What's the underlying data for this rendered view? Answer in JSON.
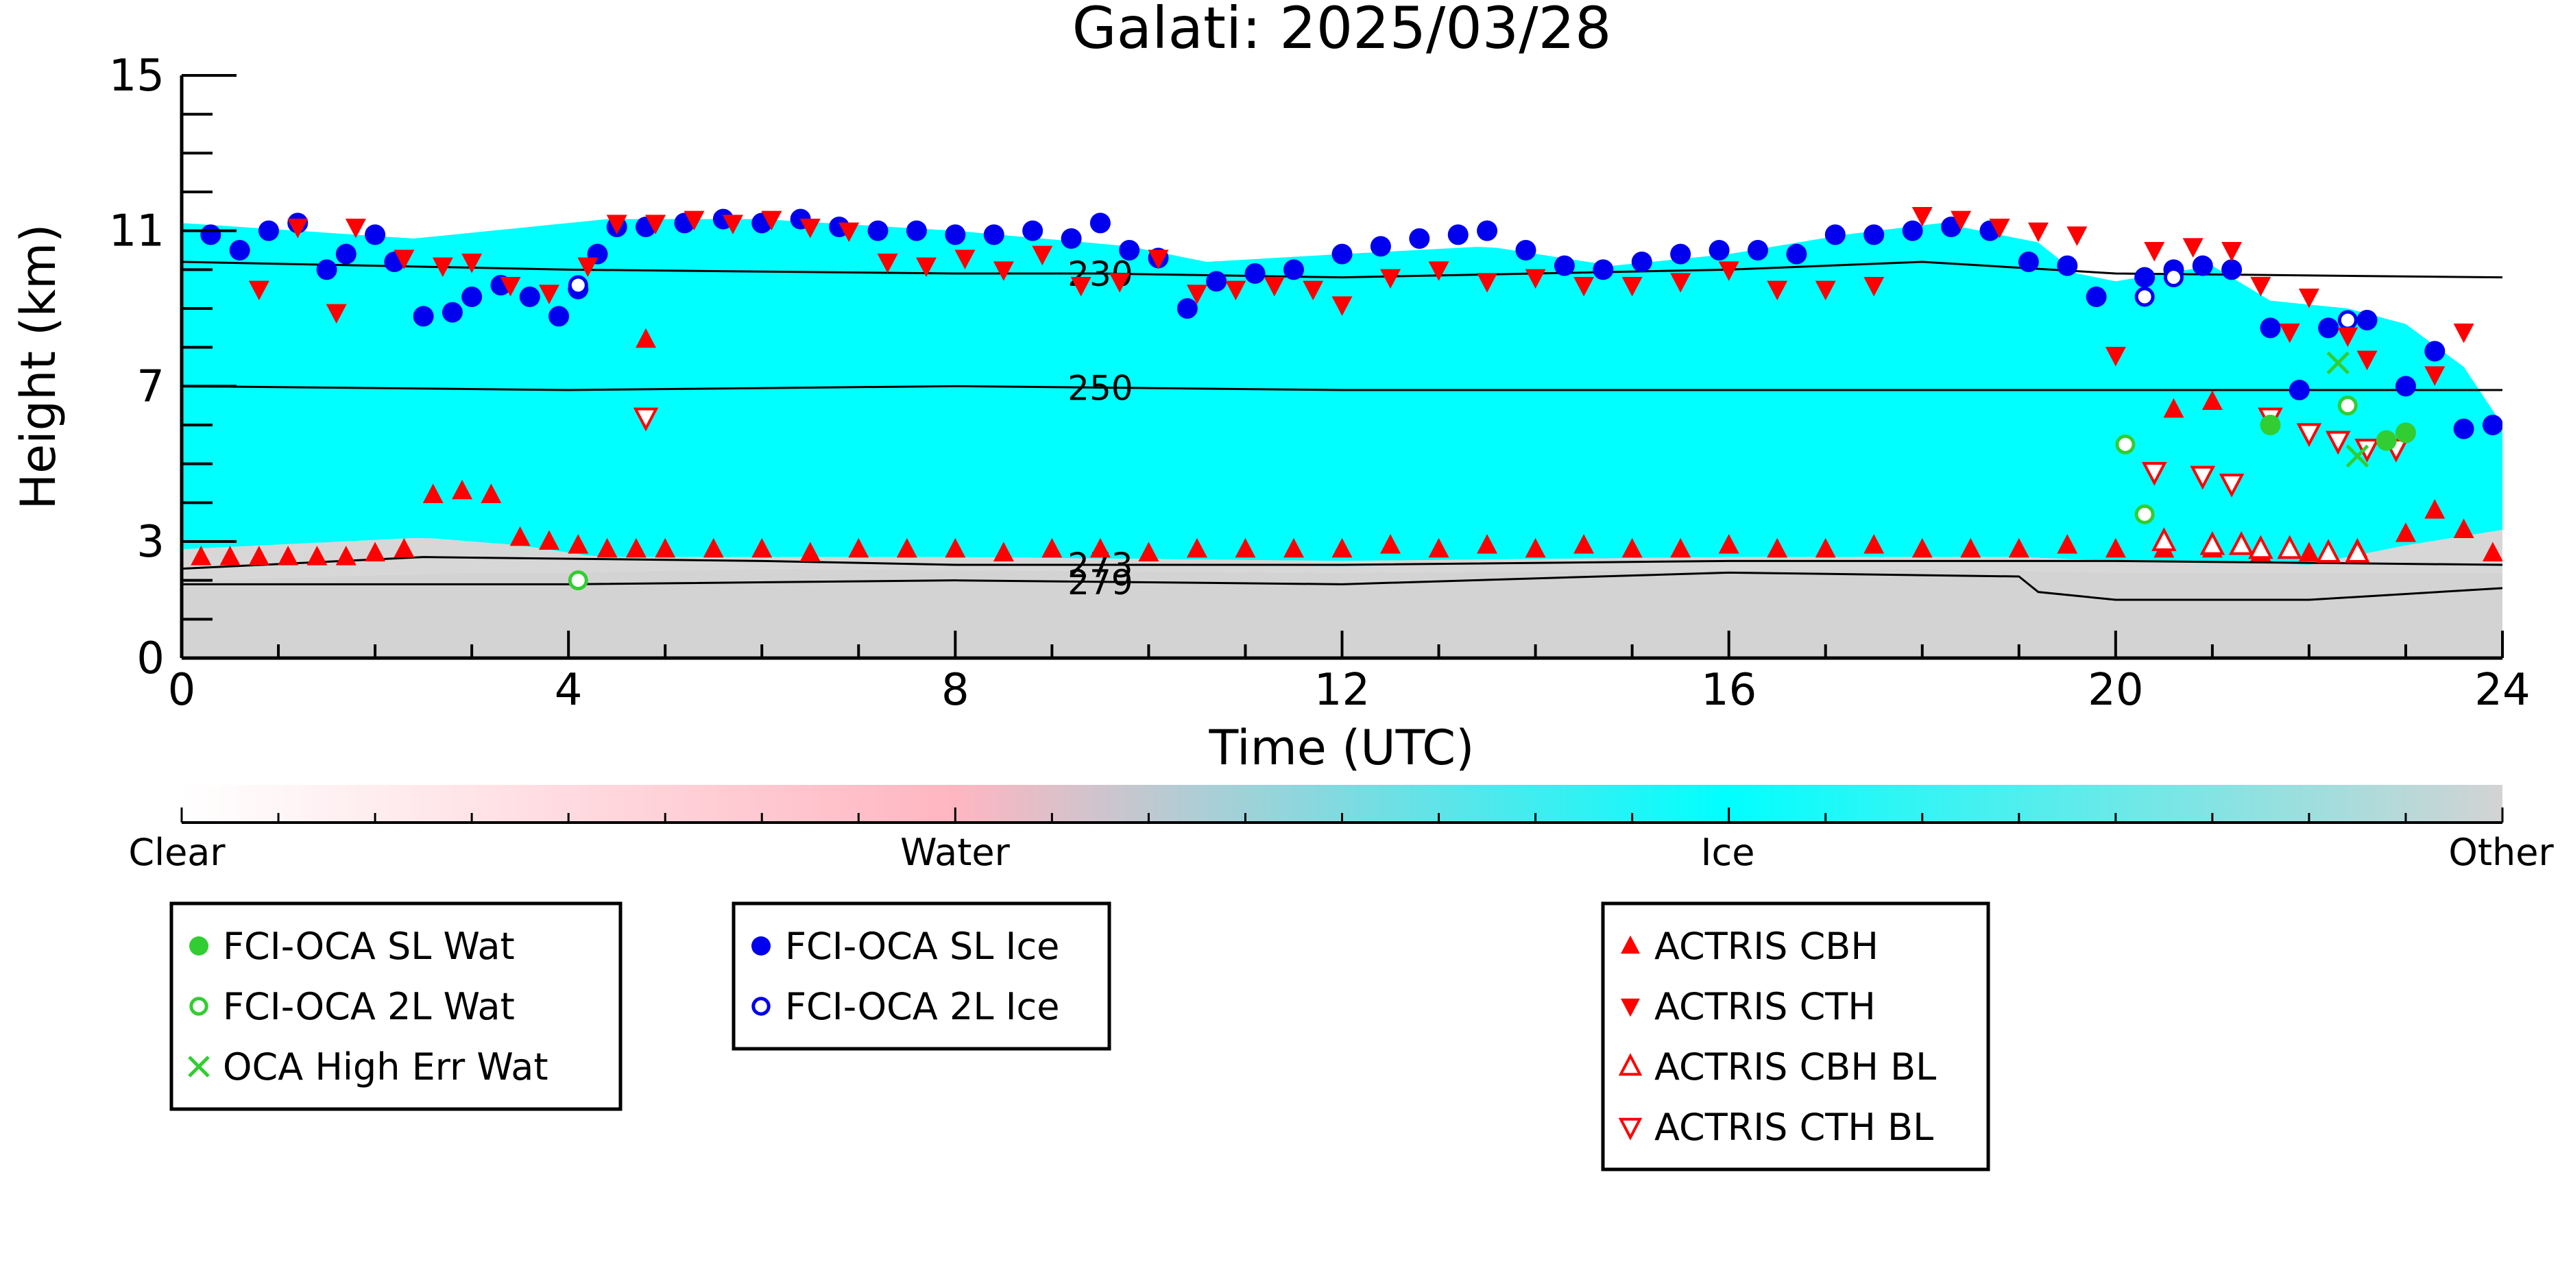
{
  "chart_data": {
    "type": "scatter",
    "title": "Galati: 2025/03/28",
    "xlabel": "Time (UTC)",
    "ylabel": "Height (km)",
    "xlim": [
      0,
      24
    ],
    "ylim": [
      0,
      15
    ],
    "x_ticks": [
      0,
      4,
      8,
      12,
      16,
      20,
      24
    ],
    "y_ticks": [
      0,
      3,
      7,
      11,
      15
    ],
    "background": {
      "description_classes": [
        "Clear",
        "Water",
        "Ice",
        "Other"
      ],
      "ice_top": [
        [
          0,
          11.2
        ],
        [
          2.4,
          10.8
        ],
        [
          4.4,
          11.3
        ],
        [
          6,
          11.3
        ],
        [
          8,
          11.0
        ],
        [
          9.8,
          10.6
        ],
        [
          10.6,
          10.2
        ],
        [
          12,
          10.4
        ],
        [
          13.5,
          10.6
        ],
        [
          14.8,
          10.1
        ],
        [
          16,
          10.4
        ],
        [
          17.2,
          10.9
        ],
        [
          18.2,
          11.2
        ],
        [
          19.2,
          10.7
        ],
        [
          19.6,
          9.9
        ],
        [
          20,
          9.7
        ],
        [
          21,
          10.1
        ],
        [
          21.6,
          9.2
        ],
        [
          22.4,
          9.0
        ],
        [
          23,
          8.6
        ],
        [
          23.6,
          7.5
        ],
        [
          24,
          6.0
        ]
      ],
      "ice_bottom": [
        [
          0,
          2.8
        ],
        [
          2.5,
          3.1
        ],
        [
          3.5,
          2.9
        ],
        [
          4.3,
          2.6
        ],
        [
          6,
          2.6
        ],
        [
          8,
          2.6
        ],
        [
          12,
          2.5
        ],
        [
          16,
          2.6
        ],
        [
          19,
          2.6
        ],
        [
          20,
          2.5
        ],
        [
          21,
          2.5
        ],
        [
          22,
          2.4
        ],
        [
          23,
          2.9
        ],
        [
          24,
          3.3
        ]
      ],
      "other_top": [
        [
          0,
          2.0
        ],
        [
          3,
          2.2
        ],
        [
          4,
          2.2
        ],
        [
          6,
          2.3
        ],
        [
          12,
          2.2
        ],
        [
          18,
          2.3
        ],
        [
          20,
          2.2
        ],
        [
          24,
          2.2
        ]
      ]
    },
    "isotherms": [
      {
        "label": "230",
        "label_x": 9.5,
        "points": [
          [
            0,
            10.2
          ],
          [
            4,
            10.0
          ],
          [
            8,
            9.9
          ],
          [
            9.5,
            9.9
          ],
          [
            12,
            9.8
          ],
          [
            16,
            10.0
          ],
          [
            18,
            10.2
          ],
          [
            20,
            9.9
          ],
          [
            24,
            9.8
          ]
        ]
      },
      {
        "label": "250",
        "label_x": 9.5,
        "points": [
          [
            0,
            7.0
          ],
          [
            4,
            6.9
          ],
          [
            8,
            7.0
          ],
          [
            12,
            6.9
          ],
          [
            16,
            6.9
          ],
          [
            20,
            6.9
          ],
          [
            24,
            6.9
          ]
        ]
      },
      {
        "label": "273",
        "label_x": 9.5,
        "points": [
          [
            0,
            2.3
          ],
          [
            2.5,
            2.6
          ],
          [
            6,
            2.5
          ],
          [
            8,
            2.4
          ],
          [
            12,
            2.4
          ],
          [
            16,
            2.5
          ],
          [
            20,
            2.5
          ],
          [
            24,
            2.4
          ]
        ]
      },
      {
        "label": "279",
        "label_x": 9.5,
        "points": [
          [
            0,
            1.9
          ],
          [
            4,
            1.9
          ],
          [
            8,
            2.0
          ],
          [
            12,
            1.9
          ],
          [
            16,
            2.2
          ],
          [
            19.0,
            2.1
          ],
          [
            19.2,
            1.7
          ],
          [
            20,
            1.5
          ],
          [
            22,
            1.5
          ],
          [
            24,
            1.8
          ]
        ]
      }
    ],
    "colorbar": {
      "labels": [
        "Clear",
        "Water",
        "Ice",
        "Other"
      ],
      "colors": [
        "#ffffff",
        "#ffb6c1",
        "#00ffff",
        "#d3d3d3"
      ]
    },
    "legends": [
      {
        "entries": [
          {
            "name": "FCI-OCA SL Wat",
            "marker": "filled-circle",
            "color": "#32cd32"
          },
          {
            "name": "FCI-OCA 2L Wat",
            "marker": "open-circle",
            "color": "#32cd32"
          },
          {
            "name": "OCA High Err Wat",
            "marker": "x",
            "color": "#32cd32"
          }
        ]
      },
      {
        "entries": [
          {
            "name": "FCI-OCA SL Ice",
            "marker": "filled-circle",
            "color": "#0000ee"
          },
          {
            "name": "FCI-OCA 2L Ice",
            "marker": "open-circle",
            "color": "#0000ee"
          }
        ]
      },
      {
        "entries": [
          {
            "name": "ACTRIS CBH",
            "marker": "filled-triangle-up",
            "color": "#ff0000"
          },
          {
            "name": "ACTRIS CTH",
            "marker": "filled-triangle-down",
            "color": "#ff0000"
          },
          {
            "name": "ACTRIS CBH BL",
            "marker": "open-triangle-up",
            "color": "#ff0000"
          },
          {
            "name": "ACTRIS CTH BL",
            "marker": "open-triangle-down",
            "color": "#ff0000"
          }
        ]
      }
    ],
    "series": [
      {
        "name": "FCI-OCA SL Ice",
        "x": [
          0.3,
          0.6,
          0.9,
          1.2,
          1.5,
          1.7,
          2.0,
          2.2,
          2.5,
          2.8,
          3.0,
          3.3,
          3.6,
          3.9,
          4.1,
          4.3,
          4.5,
          4.8,
          5.2,
          5.6,
          6.0,
          6.4,
          6.8,
          7.2,
          7.6,
          8.0,
          8.4,
          8.8,
          9.2,
          9.5,
          9.8,
          10.1,
          10.4,
          10.7,
          11.1,
          11.5,
          12.0,
          12.4,
          12.8,
          13.2,
          13.5,
          13.9,
          14.3,
          14.7,
          15.1,
          15.5,
          15.9,
          16.3,
          16.7,
          17.1,
          17.5,
          17.9,
          18.3,
          18.7,
          19.1,
          19.5,
          19.8,
          20.3,
          20.6,
          20.9,
          21.2,
          21.6,
          21.9,
          22.2,
          22.6,
          23.0,
          23.3,
          23.6,
          23.9
        ],
        "y": [
          10.9,
          10.5,
          11.0,
          11.2,
          10.0,
          10.4,
          10.9,
          10.2,
          8.8,
          8.9,
          9.3,
          9.6,
          9.3,
          8.8,
          9.5,
          10.4,
          11.1,
          11.1,
          11.2,
          11.3,
          11.2,
          11.3,
          11.1,
          11.0,
          11.0,
          10.9,
          10.9,
          11.0,
          10.8,
          11.2,
          10.5,
          10.3,
          9.0,
          9.7,
          9.9,
          10.0,
          10.4,
          10.6,
          10.8,
          10.9,
          11.0,
          10.5,
          10.1,
          10.0,
          10.2,
          10.4,
          10.5,
          10.5,
          10.4,
          10.9,
          10.9,
          11.0,
          11.1,
          11.0,
          10.2,
          10.1,
          9.3,
          9.8,
          10.0,
          10.1,
          10.0,
          8.5,
          6.9,
          8.5,
          8.7,
          7.0,
          7.9,
          5.9,
          6.0
        ]
      },
      {
        "name": "FCI-OCA 2L Ice",
        "x": [
          4.1,
          20.3,
          20.6,
          22.4
        ],
        "y": [
          9.6,
          9.3,
          9.8,
          8.7
        ]
      },
      {
        "name": "FCI-OCA SL Wat",
        "x": [
          21.6,
          22.8,
          23.0
        ],
        "y": [
          6.0,
          5.6,
          5.8
        ]
      },
      {
        "name": "FCI-OCA 2L Wat",
        "x": [
          4.1,
          20.1,
          20.3,
          22.4
        ],
        "y": [
          2.0,
          5.5,
          3.7,
          6.5
        ]
      },
      {
        "name": "OCA High Err Wat",
        "x": [
          22.3,
          22.5
        ],
        "y": [
          7.6,
          5.2
        ]
      },
      {
        "name": "ACTRIS CBH",
        "x": [
          0.2,
          0.5,
          0.8,
          1.1,
          1.4,
          1.7,
          2.0,
          2.3,
          2.6,
          2.9,
          3.2,
          3.5,
          3.8,
          4.1,
          4.4,
          4.7,
          5.0,
          5.5,
          6.0,
          6.5,
          7.0,
          7.5,
          8.0,
          8.5,
          9.0,
          9.5,
          10.0,
          10.5,
          11.0,
          11.5,
          12.0,
          12.5,
          13.0,
          13.5,
          14.0,
          14.5,
          15.0,
          15.5,
          16.0,
          16.5,
          17.0,
          17.5,
          18.0,
          18.5,
          19.0,
          19.5,
          20.0,
          20.5,
          21.0,
          21.5,
          22.0,
          22.5,
          23.0,
          23.3,
          23.6,
          23.9,
          4.8,
          20.6,
          21.0
        ],
        "y": [
          2.6,
          2.6,
          2.6,
          2.6,
          2.6,
          2.6,
          2.7,
          2.8,
          4.2,
          4.3,
          4.2,
          3.1,
          3.0,
          2.9,
          2.8,
          2.8,
          2.8,
          2.8,
          2.8,
          2.7,
          2.8,
          2.8,
          2.8,
          2.7,
          2.8,
          2.8,
          2.7,
          2.8,
          2.8,
          2.8,
          2.8,
          2.9,
          2.8,
          2.9,
          2.8,
          2.9,
          2.8,
          2.8,
          2.9,
          2.8,
          2.8,
          2.9,
          2.8,
          2.8,
          2.8,
          2.9,
          2.8,
          2.8,
          2.8,
          2.7,
          2.7,
          2.8,
          3.2,
          3.8,
          3.3,
          2.7,
          8.2,
          6.4,
          6.6
        ]
      },
      {
        "name": "ACTRIS CTH",
        "x": [
          0.8,
          1.2,
          1.6,
          1.8,
          2.3,
          2.7,
          3.0,
          3.4,
          3.8,
          4.2,
          4.5,
          4.9,
          5.3,
          5.7,
          6.1,
          6.5,
          6.9,
          7.3,
          7.7,
          8.1,
          8.5,
          8.9,
          9.3,
          9.7,
          10.1,
          10.5,
          10.9,
          11.3,
          11.7,
          12.0,
          12.5,
          13.0,
          13.5,
          14.0,
          14.5,
          15.0,
          15.5,
          16.0,
          16.5,
          17.0,
          17.5,
          18.0,
          18.4,
          18.8,
          19.2,
          19.6,
          20.0,
          20.4,
          20.8,
          21.2,
          21.5,
          21.8,
          22.0,
          22.4,
          22.6,
          23.3,
          23.6
        ],
        "y": [
          9.5,
          11.1,
          8.9,
          11.1,
          10.3,
          10.1,
          10.2,
          9.6,
          9.4,
          10.1,
          11.2,
          11.2,
          11.3,
          11.2,
          11.3,
          11.1,
          11.0,
          10.2,
          10.1,
          10.3,
          10.0,
          10.4,
          9.6,
          9.7,
          10.3,
          9.4,
          9.5,
          9.6,
          9.5,
          9.1,
          9.8,
          10.0,
          9.7,
          9.8,
          9.6,
          9.6,
          9.7,
          10.0,
          9.5,
          9.5,
          9.6,
          11.4,
          11.3,
          11.1,
          11.0,
          10.9,
          7.8,
          10.5,
          10.6,
          10.5,
          9.6,
          8.4,
          9.3,
          8.3,
          7.7,
          7.3,
          8.4
        ]
      },
      {
        "name": "ACTRIS CBH BL",
        "x": [
          20.5,
          21.0,
          21.3,
          21.5,
          21.8,
          22.2,
          22.5
        ],
        "y": [
          3.0,
          2.9,
          2.9,
          2.8,
          2.8,
          2.7,
          2.7
        ]
      },
      {
        "name": "ACTRIS CTH BL",
        "x": [
          4.8,
          20.4,
          20.9,
          21.2,
          21.6,
          22.0,
          22.3,
          22.6,
          22.9
        ],
        "y": [
          6.2,
          4.8,
          4.7,
          4.5,
          6.2,
          5.8,
          5.6,
          5.4,
          5.4
        ]
      }
    ]
  }
}
